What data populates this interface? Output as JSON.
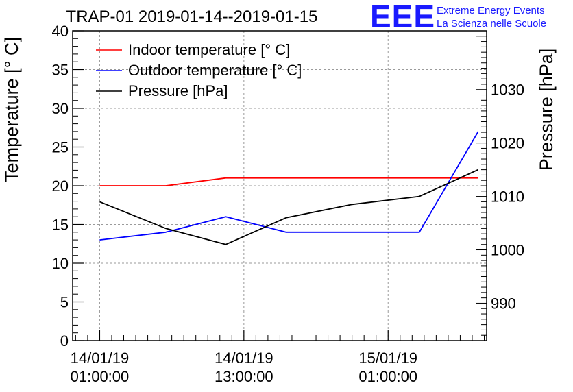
{
  "chart_data": {
    "type": "line",
    "title": "TRAP-01 2019-01-14--2019-01-15",
    "ylabel": "Temperature [° C]",
    "ylabel_right": "Pressure [hPa]",
    "ylim": [
      0,
      40
    ],
    "ylim_right": [
      983,
      1041
    ],
    "x_range_hours": [
      -2.25,
      32.2
    ],
    "yticks": [
      0,
      5,
      10,
      15,
      20,
      25,
      30,
      35,
      40
    ],
    "yticks_right": [
      990,
      1000,
      1010,
      1020,
      1030
    ],
    "xticks": [
      {
        "hour": 0,
        "line1": "14/01/19",
        "line2": "01:00:00"
      },
      {
        "hour": 12,
        "line1": "14/01/19",
        "line2": "13:00:00"
      },
      {
        "hour": 24,
        "line1": "15/01/19",
        "line2": "01:00:00"
      }
    ],
    "legend_position": "top-left",
    "grid": true,
    "series": [
      {
        "name": "Indoor temperature [° C]",
        "color": "#ff0000",
        "axis": "left",
        "x": [
          0,
          5.5,
          10.5,
          15.5,
          21,
          26.6,
          31.5
        ],
        "values": [
          20,
          20,
          21,
          21,
          21,
          21,
          21
        ]
      },
      {
        "name": "Outdoor temperature [° C]",
        "color": "#0000ff",
        "axis": "left",
        "x": [
          0,
          5.5,
          10.5,
          15.5,
          21,
          26.6,
          31.5
        ],
        "values": [
          13,
          14,
          16,
          14,
          14,
          14,
          27
        ]
      },
      {
        "name": "Pressure [hPa]",
        "color": "#000000",
        "axis": "right",
        "x": [
          0,
          5.5,
          10.5,
          15.5,
          21,
          26.6,
          31.5
        ],
        "values": [
          1009,
          1004,
          1001,
          1006,
          1008.5,
          1010,
          1015
        ]
      }
    ]
  },
  "logo": {
    "text": "EEE",
    "line1": "Extreme Energy Events",
    "line2": "La Scienza nelle Scuole",
    "color": "#1a1aff"
  }
}
